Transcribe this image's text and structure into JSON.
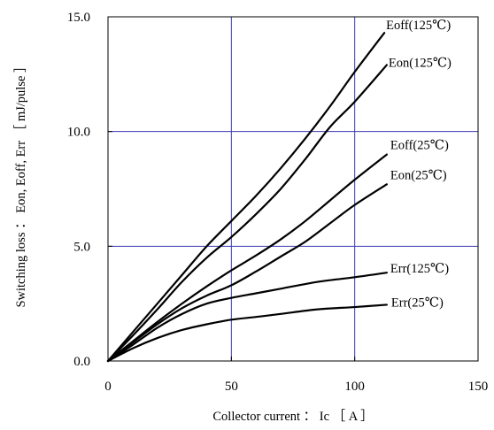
{
  "chart_data": {
    "type": "line",
    "title": "",
    "xlabel": "Collector current ： Ic ［ A ］",
    "ylabel": "Switching loss ： Eon, Eoff, Err ［ mJ/pulse ］",
    "xlim": [
      0,
      150
    ],
    "ylim": [
      0,
      15
    ],
    "x_ticks": [
      0,
      50,
      100,
      150
    ],
    "x_tick_labels": [
      "0",
      "50",
      "100",
      "150"
    ],
    "y_ticks": [
      0,
      5,
      10,
      15
    ],
    "y_tick_labels": [
      "0.0",
      "5.0",
      "10.0",
      "15.0"
    ],
    "grid": true,
    "colors": {
      "grid": "#3a3ab5",
      "line": "#000000",
      "frame": "#000000"
    },
    "series": [
      {
        "name": "Eoff(125℃)",
        "x": [
          0,
          10,
          20,
          30,
          40,
          50,
          60,
          70,
          80,
          90,
          100,
          112
        ],
        "y": [
          0,
          1.25,
          2.5,
          3.75,
          5.0,
          6.1,
          7.2,
          8.4,
          9.7,
          11.1,
          12.6,
          14.3
        ]
      },
      {
        "name": "Eon(125℃)",
        "x": [
          0,
          10,
          20,
          30,
          40,
          50,
          60,
          70,
          80,
          90,
          100,
          113
        ],
        "y": [
          0,
          1.1,
          2.25,
          3.45,
          4.5,
          5.4,
          6.4,
          7.5,
          8.8,
          10.2,
          11.3,
          12.9
        ]
      },
      {
        "name": "Eoff(25℃)",
        "x": [
          0,
          10,
          20,
          30,
          40,
          50,
          60,
          70,
          80,
          90,
          100,
          113
        ],
        "y": [
          0,
          0.85,
          1.7,
          2.5,
          3.25,
          3.95,
          4.6,
          5.3,
          6.1,
          7.0,
          7.9,
          9.0
        ]
      },
      {
        "name": "Eon(25℃)",
        "x": [
          0,
          10,
          20,
          30,
          40,
          50,
          60,
          70,
          80,
          90,
          100,
          113
        ],
        "y": [
          0,
          0.8,
          1.6,
          2.3,
          2.85,
          3.3,
          3.9,
          4.55,
          5.2,
          6.0,
          6.8,
          7.7
        ]
      },
      {
        "name": "Err(125℃)",
        "x": [
          0,
          10,
          20,
          30,
          40,
          50,
          60,
          70,
          85,
          100,
          113
        ],
        "y": [
          0,
          0.7,
          1.45,
          2.05,
          2.5,
          2.75,
          2.95,
          3.15,
          3.45,
          3.65,
          3.85
        ]
      },
      {
        "name": "Err(25℃)",
        "x": [
          0,
          10,
          20,
          30,
          40,
          50,
          60,
          70,
          85,
          100,
          113
        ],
        "y": [
          0,
          0.55,
          1.0,
          1.35,
          1.6,
          1.8,
          1.92,
          2.05,
          2.25,
          2.35,
          2.45
        ]
      }
    ]
  }
}
